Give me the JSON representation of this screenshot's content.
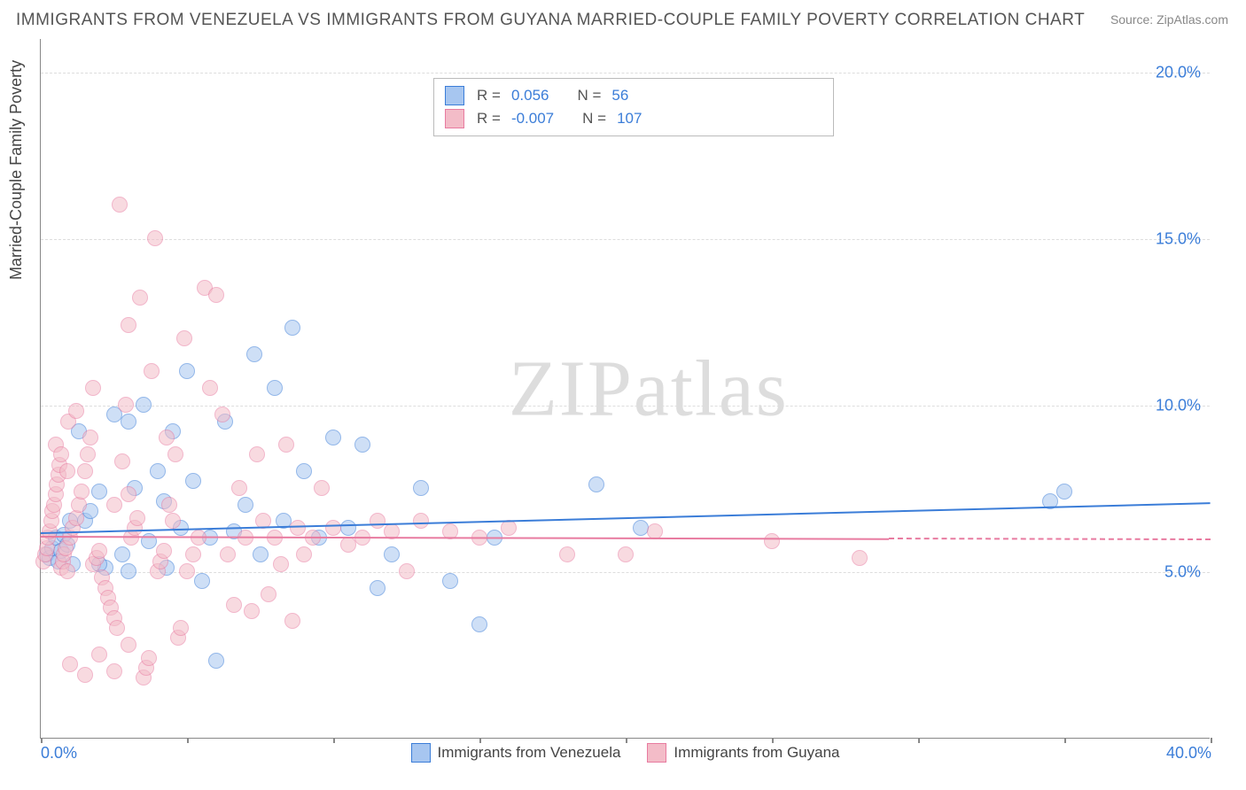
{
  "title": "IMMIGRANTS FROM VENEZUELA VS IMMIGRANTS FROM GUYANA MARRIED-COUPLE FAMILY POVERTY CORRELATION CHART",
  "source": "Source: ZipAtlas.com",
  "yaxis_title": "Married-Couple Family Poverty",
  "watermark_a": "ZIP",
  "watermark_b": "atlas",
  "chart": {
    "type": "scatter",
    "background_color": "#ffffff",
    "grid_color": "#dddddd",
    "axis_color": "#888888",
    "xlim": [
      0,
      40
    ],
    "ylim": [
      0,
      21
    ],
    "yticks": [
      {
        "v": 5.0,
        "label": "5.0%"
      },
      {
        "v": 10.0,
        "label": "10.0%"
      },
      {
        "v": 15.0,
        "label": "15.0%"
      },
      {
        "v": 20.0,
        "label": "20.0%"
      }
    ],
    "xticks": [
      {
        "v": 0.0,
        "label": "0.0%"
      },
      {
        "v": 40.0,
        "label": "40.0%"
      },
      {
        "v": 5,
        "label": ""
      },
      {
        "v": 10,
        "label": ""
      },
      {
        "v": 15,
        "label": ""
      },
      {
        "v": 20,
        "label": ""
      },
      {
        "v": 25,
        "label": ""
      },
      {
        "v": 30,
        "label": ""
      },
      {
        "v": 35,
        "label": ""
      }
    ],
    "marker_size": 18,
    "marker_opacity": 0.55,
    "title_fontsize": 19,
    "tick_fontsize": 18,
    "tick_color": "#3b7dd8"
  },
  "series": [
    {
      "name": "Immigrants from Venezuela",
      "fill": "#a7c6f0",
      "stroke": "#3b7dd8",
      "R": "0.056",
      "N": "56",
      "regression": {
        "x1": 0,
        "y1": 6.2,
        "x2": 40,
        "y2": 7.1,
        "dashed_from": null
      },
      "points": [
        [
          0.2,
          5.5
        ],
        [
          0.3,
          5.4
        ],
        [
          0.4,
          5.7
        ],
        [
          0.5,
          6.0
        ],
        [
          0.6,
          5.3
        ],
        [
          0.7,
          5.6
        ],
        [
          0.8,
          6.1
        ],
        [
          0.9,
          5.8
        ],
        [
          1.0,
          6.5
        ],
        [
          1.1,
          5.2
        ],
        [
          1.3,
          9.2
        ],
        [
          1.5,
          6.5
        ],
        [
          2.0,
          7.4
        ],
        [
          2.2,
          5.1
        ],
        [
          2.5,
          9.7
        ],
        [
          2.8,
          5.5
        ],
        [
          3.0,
          9.5
        ],
        [
          3.2,
          7.5
        ],
        [
          3.5,
          10.0
        ],
        [
          3.7,
          5.9
        ],
        [
          4.0,
          8.0
        ],
        [
          4.3,
          5.1
        ],
        [
          4.5,
          9.2
        ],
        [
          4.8,
          6.3
        ],
        [
          5.0,
          11.0
        ],
        [
          5.2,
          7.7
        ],
        [
          5.5,
          4.7
        ],
        [
          5.8,
          6.0
        ],
        [
          6.0,
          2.3
        ],
        [
          6.3,
          9.5
        ],
        [
          6.6,
          6.2
        ],
        [
          7.0,
          7.0
        ],
        [
          7.3,
          11.5
        ],
        [
          7.5,
          5.5
        ],
        [
          8.0,
          10.5
        ],
        [
          8.3,
          6.5
        ],
        [
          8.6,
          12.3
        ],
        [
          9.0,
          8.0
        ],
        [
          9.5,
          6.0
        ],
        [
          10.0,
          9.0
        ],
        [
          10.5,
          6.3
        ],
        [
          11.0,
          8.8
        ],
        [
          11.5,
          4.5
        ],
        [
          12.0,
          5.5
        ],
        [
          13.0,
          7.5
        ],
        [
          14.0,
          4.7
        ],
        [
          15.0,
          3.4
        ],
        [
          15.5,
          6.0
        ],
        [
          19.0,
          7.6
        ],
        [
          20.5,
          6.3
        ],
        [
          34.5,
          7.1
        ],
        [
          35.0,
          7.4
        ],
        [
          2.0,
          5.2
        ],
        [
          3.0,
          5.0
        ],
        [
          1.7,
          6.8
        ],
        [
          4.2,
          7.1
        ]
      ]
    },
    {
      "name": "Immigrants from Guyana",
      "fill": "#f3bcc8",
      "stroke": "#e87ba0",
      "R": "-0.007",
      "N": "107",
      "regression": {
        "x1": 0,
        "y1": 6.1,
        "x2": 40,
        "y2": 6.0,
        "dashed_from": 29
      },
      "points": [
        [
          0.1,
          5.3
        ],
        [
          0.15,
          5.5
        ],
        [
          0.2,
          5.7
        ],
        [
          0.25,
          6.0
        ],
        [
          0.3,
          6.2
        ],
        [
          0.35,
          6.5
        ],
        [
          0.4,
          6.8
        ],
        [
          0.45,
          7.0
        ],
        [
          0.5,
          7.3
        ],
        [
          0.55,
          7.6
        ],
        [
          0.6,
          7.9
        ],
        [
          0.65,
          8.2
        ],
        [
          0.7,
          5.1
        ],
        [
          0.75,
          5.3
        ],
        [
          0.8,
          5.5
        ],
        [
          0.85,
          5.7
        ],
        [
          0.9,
          5.0
        ],
        [
          0.95,
          9.5
        ],
        [
          1.0,
          6.0
        ],
        [
          1.1,
          6.3
        ],
        [
          1.2,
          6.6
        ],
        [
          1.3,
          7.0
        ],
        [
          1.4,
          7.4
        ],
        [
          1.5,
          8.0
        ],
        [
          1.6,
          8.5
        ],
        [
          1.7,
          9.0
        ],
        [
          1.8,
          5.2
        ],
        [
          1.9,
          5.4
        ],
        [
          2.0,
          5.6
        ],
        [
          2.1,
          4.8
        ],
        [
          2.2,
          4.5
        ],
        [
          2.3,
          4.2
        ],
        [
          2.4,
          3.9
        ],
        [
          2.5,
          3.6
        ],
        [
          2.6,
          3.3
        ],
        [
          2.7,
          16.0
        ],
        [
          2.8,
          8.3
        ],
        [
          2.9,
          10.0
        ],
        [
          3.0,
          12.4
        ],
        [
          3.1,
          6.0
        ],
        [
          3.2,
          6.3
        ],
        [
          3.3,
          6.6
        ],
        [
          3.4,
          13.2
        ],
        [
          3.5,
          1.8
        ],
        [
          3.6,
          2.1
        ],
        [
          3.7,
          2.4
        ],
        [
          3.8,
          11.0
        ],
        [
          3.9,
          15.0
        ],
        [
          4.0,
          5.0
        ],
        [
          4.1,
          5.3
        ],
        [
          4.2,
          5.6
        ],
        [
          4.3,
          9.0
        ],
        [
          4.4,
          7.0
        ],
        [
          4.5,
          6.5
        ],
        [
          4.6,
          8.5
        ],
        [
          4.7,
          3.0
        ],
        [
          4.8,
          3.3
        ],
        [
          4.9,
          12.0
        ],
        [
          5.0,
          5.0
        ],
        [
          5.2,
          5.5
        ],
        [
          5.4,
          6.0
        ],
        [
          5.6,
          13.5
        ],
        [
          5.8,
          10.5
        ],
        [
          6.0,
          13.3
        ],
        [
          6.2,
          9.7
        ],
        [
          6.4,
          5.5
        ],
        [
          6.6,
          4.0
        ],
        [
          6.8,
          7.5
        ],
        [
          7.0,
          6.0
        ],
        [
          7.2,
          3.8
        ],
        [
          7.4,
          8.5
        ],
        [
          7.6,
          6.5
        ],
        [
          7.8,
          4.3
        ],
        [
          8.0,
          6.0
        ],
        [
          8.2,
          5.2
        ],
        [
          8.4,
          8.8
        ],
        [
          8.6,
          3.5
        ],
        [
          8.8,
          6.3
        ],
        [
          9.0,
          5.5
        ],
        [
          9.3,
          6.0
        ],
        [
          9.6,
          7.5
        ],
        [
          10.0,
          6.3
        ],
        [
          10.5,
          5.8
        ],
        [
          11.0,
          6.0
        ],
        [
          11.5,
          6.5
        ],
        [
          12.0,
          6.2
        ],
        [
          12.5,
          5.0
        ],
        [
          13.0,
          6.5
        ],
        [
          14.0,
          6.2
        ],
        [
          15.0,
          6.0
        ],
        [
          16.0,
          6.3
        ],
        [
          18.0,
          5.5
        ],
        [
          20.0,
          5.5
        ],
        [
          21.0,
          6.2
        ],
        [
          25.0,
          5.9
        ],
        [
          28.0,
          5.4
        ],
        [
          1.0,
          2.2
        ],
        [
          1.5,
          1.9
        ],
        [
          2.0,
          2.5
        ],
        [
          2.5,
          2.0
        ],
        [
          3.0,
          2.8
        ],
        [
          1.2,
          9.8
        ],
        [
          1.8,
          10.5
        ],
        [
          0.5,
          8.8
        ],
        [
          0.7,
          8.5
        ],
        [
          0.9,
          8.0
        ],
        [
          2.5,
          7.0
        ],
        [
          3.0,
          7.3
        ]
      ]
    }
  ],
  "legend_bottom": [
    {
      "label": "Immigrants from Venezuela",
      "series": 0
    },
    {
      "label": "Immigrants from Guyana",
      "series": 1
    }
  ]
}
